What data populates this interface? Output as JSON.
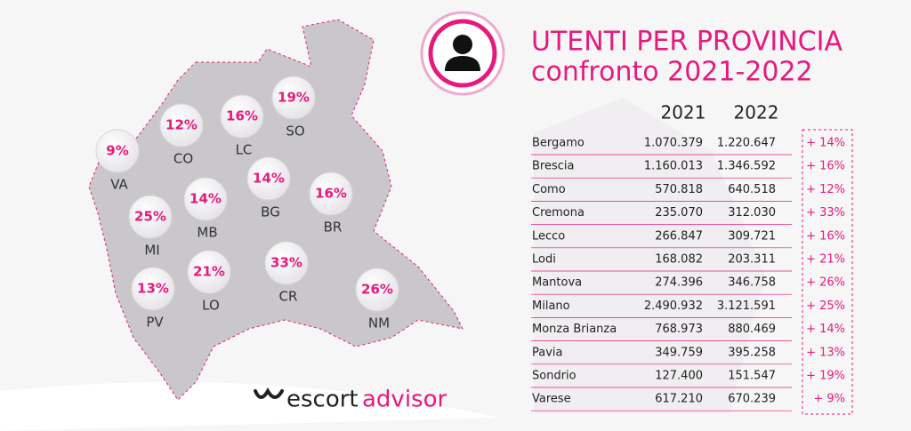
{
  "title": {
    "line1": "UTENTI PER PROVINCIA",
    "line2": "confronto 2021-2022"
  },
  "map": {
    "provinces": [
      {
        "change": "9%",
        "code": "VA"
      },
      {
        "change": "12%",
        "code": "CO"
      },
      {
        "change": "16%",
        "code": "LC"
      },
      {
        "change": "19%",
        "code": "SO"
      },
      {
        "change": "25%",
        "code": "MI"
      },
      {
        "change": "14%",
        "code": "MB"
      },
      {
        "change": "14%",
        "code": "BG"
      },
      {
        "change": "16%",
        "code": "BR"
      },
      {
        "change": "13%",
        "code": "PV"
      },
      {
        "change": "21%",
        "code": "LO"
      },
      {
        "change": "33%",
        "code": "CR"
      },
      {
        "change": "26%",
        "code": "NM"
      }
    ]
  },
  "table": {
    "columns": [
      "2021",
      "2022"
    ],
    "rows": [
      [
        "Bergamo",
        "1.070.379",
        "1.220.647",
        "+ 14%"
      ],
      [
        "Brescia",
        "1.160.013",
        "1.346.592",
        "+ 16%"
      ],
      [
        "Como",
        "570.818",
        "640.518",
        "+ 12%"
      ],
      [
        "Cremona",
        "235.070",
        "312.030",
        "+ 33%"
      ],
      [
        "Lecco",
        "266.847",
        "309.721",
        "+ 16%"
      ],
      [
        "Lodi",
        "168.082",
        "203.311",
        "+ 21%"
      ],
      [
        "Mantova",
        "274.396",
        "346.758",
        "+ 26%"
      ],
      [
        "Milano",
        "2.490.932",
        "3.121.591",
        "+ 25%"
      ],
      [
        "Monza Brianza",
        "768.973",
        "880.469",
        "+ 14%"
      ],
      [
        "Pavia",
        "349.759",
        "395.258",
        "+ 13%"
      ],
      [
        "Sondrio",
        "127.400",
        "151.547",
        "+ 19%"
      ],
      [
        "Varese",
        "617.210",
        "670.239",
        "+ 9%"
      ]
    ]
  },
  "brand": {
    "prefix": "escort",
    "suffix": "advisor"
  }
}
